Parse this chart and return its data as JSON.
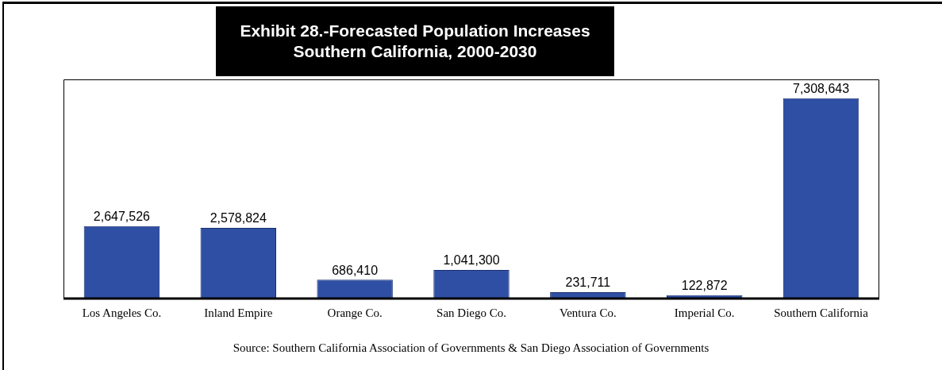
{
  "chart_data": {
    "type": "bar",
    "title": "Exhibit 28.-Forecasted Population Increases\nSouthern California, 2000-2030",
    "categories": [
      "Los Angeles Co.",
      "Inland Empire",
      "Orange Co.",
      "San Diego Co.",
      "Ventura Co.",
      "Imperial Co.",
      "Southern California"
    ],
    "values": [
      2647526,
      2578824,
      686410,
      1041300,
      231711,
      122872,
      7308643
    ],
    "value_labels": [
      "2,647,526",
      "2,578,824",
      "686,410",
      "1,041,300",
      "231,711",
      "122,872",
      "7,308,643"
    ],
    "color": "#2e4fa3",
    "grid": false,
    "legend": false,
    "annotations": [
      "Source:  Southern California Association of Governments & San Diego Association of Governments"
    ]
  }
}
